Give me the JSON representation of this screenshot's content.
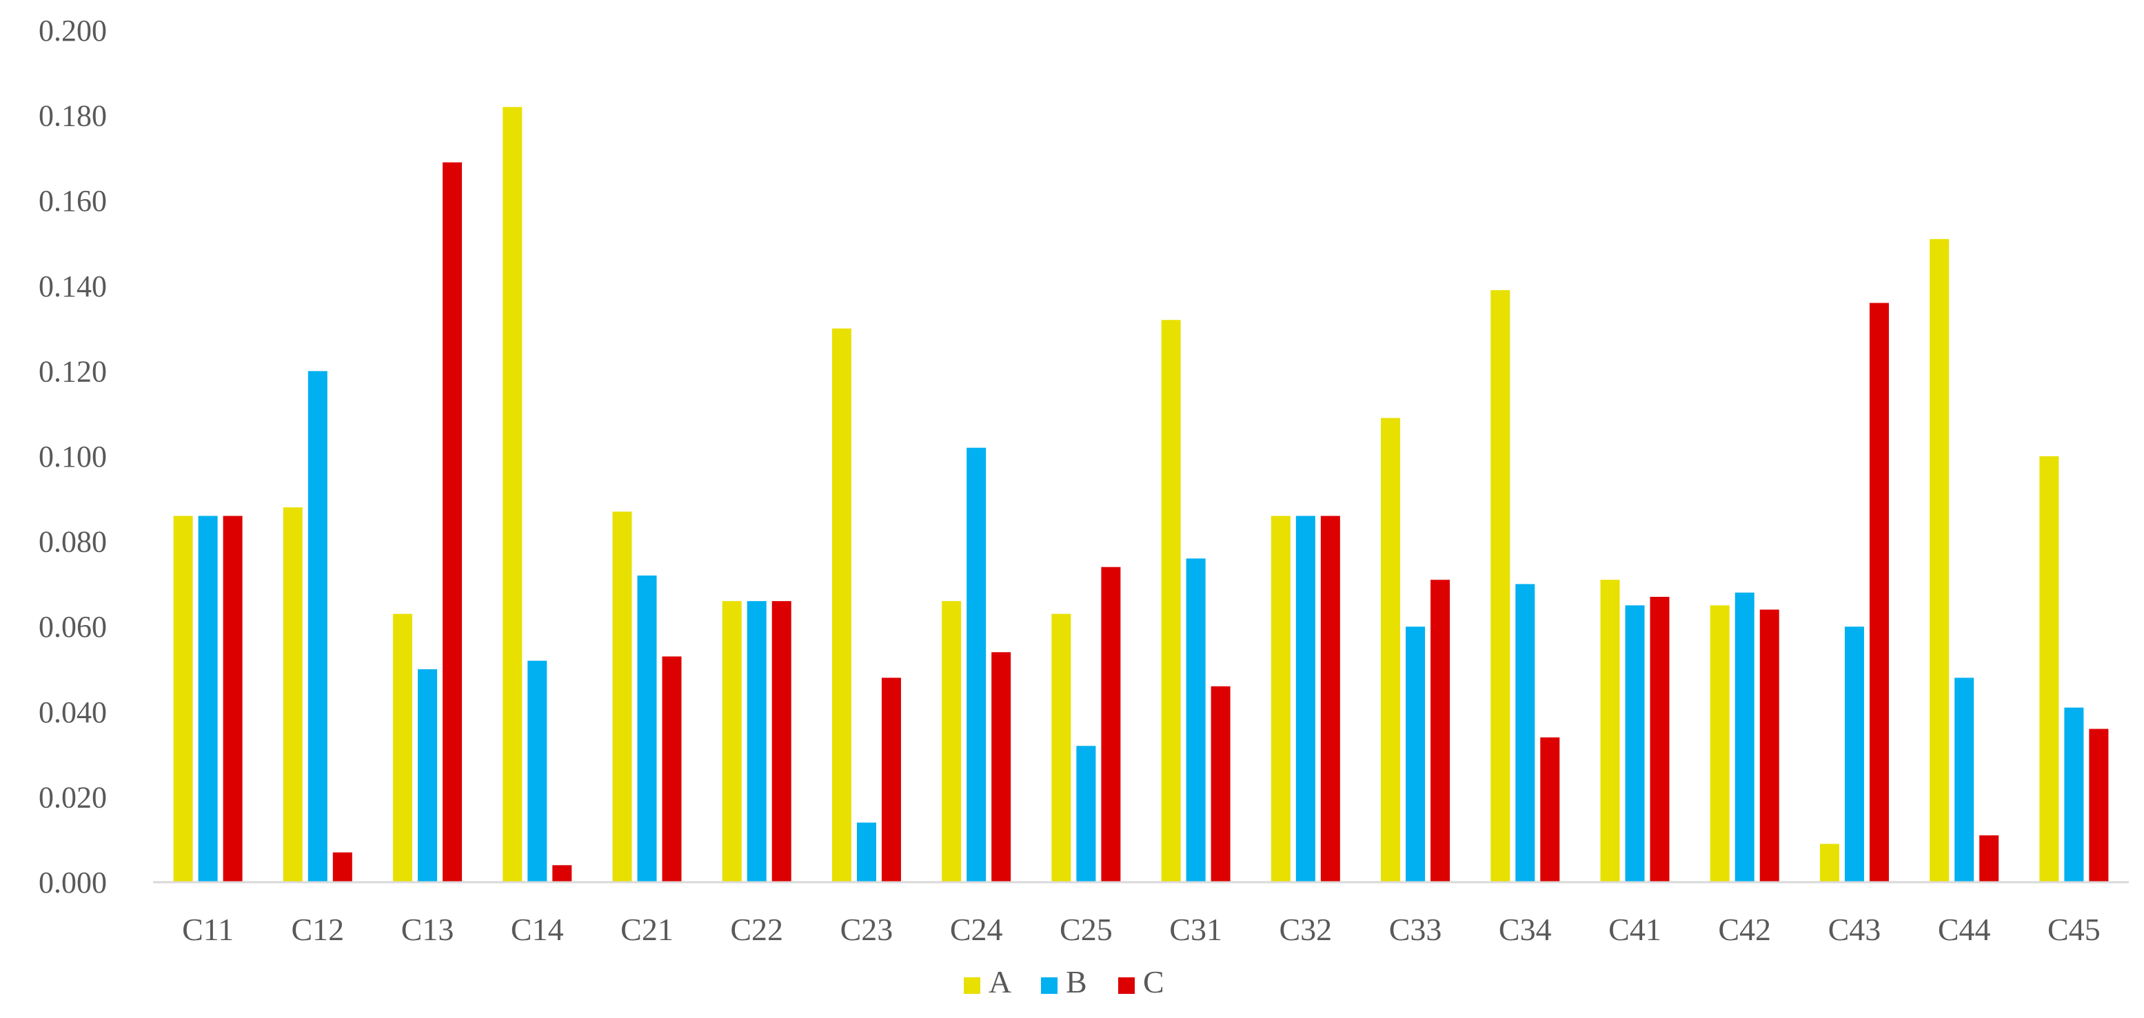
{
  "chart_data": {
    "type": "bar",
    "title": "",
    "xlabel": "",
    "ylabel": "",
    "ylim": [
      0,
      0.2
    ],
    "y_ticks": [
      "0.000",
      "0.020",
      "0.040",
      "0.060",
      "0.080",
      "0.100",
      "0.120",
      "0.140",
      "0.160",
      "0.180",
      "0.200"
    ],
    "grid": false,
    "legend_position": "bottom",
    "categories": [
      "C11",
      "C12",
      "C13",
      "C14",
      "C21",
      "C22",
      "C23",
      "C24",
      "C25",
      "C31",
      "C32",
      "C33",
      "C34",
      "C41",
      "C42",
      "C43",
      "C44",
      "C45"
    ],
    "series": [
      {
        "name": "A",
        "color": "#e8e000",
        "values": [
          0.086,
          0.088,
          0.063,
          0.182,
          0.087,
          0.066,
          0.13,
          0.066,
          0.063,
          0.132,
          0.086,
          0.109,
          0.139,
          0.071,
          0.065,
          0.009,
          0.151,
          0.1
        ]
      },
      {
        "name": "B",
        "color": "#00b0f0",
        "values": [
          0.086,
          0.12,
          0.05,
          0.052,
          0.072,
          0.066,
          0.014,
          0.102,
          0.032,
          0.076,
          0.086,
          0.06,
          0.07,
          0.065,
          0.068,
          0.06,
          0.048,
          0.041
        ]
      },
      {
        "name": "C",
        "color": "#dd0000",
        "values": [
          0.086,
          0.007,
          0.169,
          0.004,
          0.053,
          0.066,
          0.048,
          0.054,
          0.074,
          0.046,
          0.086,
          0.071,
          0.034,
          0.067,
          0.064,
          0.136,
          0.011,
          0.036
        ]
      }
    ]
  }
}
